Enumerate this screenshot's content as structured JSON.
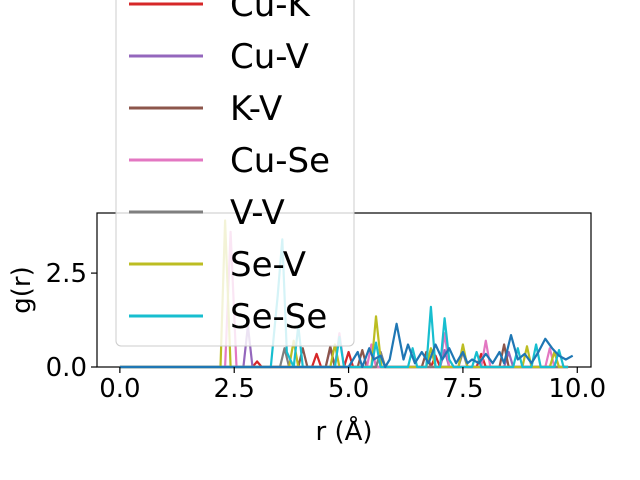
{
  "chart_data": {
    "type": "line",
    "xlabel": "r (Å)",
    "ylabel": "g(r)",
    "xlim": [
      -0.5,
      10.3
    ],
    "ylim": [
      0,
      4.1
    ],
    "x_ticks": [
      0.0,
      2.5,
      5.0,
      7.5,
      10.0
    ],
    "x_tick_labels": [
      "0.0",
      "2.5",
      "5.0",
      "7.5",
      "10.0"
    ],
    "y_ticks": [
      0.0,
      2.5
    ],
    "y_tick_labels": [
      "0.0",
      "2.5"
    ],
    "grid": false,
    "legend_placement": "upper-left, extending above the plot",
    "series": [
      {
        "name": "Cu-K",
        "color": "#d62728",
        "points": [
          [
            0,
            0
          ],
          [
            2.9,
            0
          ],
          [
            3.0,
            0.15
          ],
          [
            3.1,
            0
          ],
          [
            4.2,
            0
          ],
          [
            4.3,
            0.35
          ],
          [
            4.4,
            0
          ],
          [
            4.9,
            0
          ],
          [
            5.0,
            0.4
          ],
          [
            5.1,
            0
          ],
          [
            6.8,
            0
          ],
          [
            6.9,
            0.3
          ],
          [
            7.0,
            0
          ],
          [
            7.8,
            0
          ],
          [
            7.9,
            0.35
          ],
          [
            8.0,
            0
          ],
          [
            9.8,
            0
          ]
        ]
      },
      {
        "name": "Cu-V",
        "color": "#9467bd",
        "points": [
          [
            0,
            0
          ],
          [
            2.7,
            0
          ],
          [
            2.8,
            1.1
          ],
          [
            2.9,
            0
          ],
          [
            4.5,
            0
          ],
          [
            4.6,
            0.5
          ],
          [
            4.7,
            0
          ],
          [
            5.6,
            0
          ],
          [
            5.7,
            0.4
          ],
          [
            5.8,
            0
          ],
          [
            7.0,
            0
          ],
          [
            7.1,
            0.45
          ],
          [
            7.2,
            0
          ],
          [
            8.4,
            0
          ],
          [
            8.5,
            0.4
          ],
          [
            8.6,
            0
          ],
          [
            9.8,
            0
          ]
        ]
      },
      {
        "name": "K-V",
        "color": "#8c564b",
        "points": [
          [
            0,
            0
          ],
          [
            3.9,
            0
          ],
          [
            4.0,
            0.5
          ],
          [
            4.1,
            0
          ],
          [
            4.5,
            0
          ],
          [
            4.6,
            0.55
          ],
          [
            4.7,
            0
          ],
          [
            5.2,
            0
          ],
          [
            5.3,
            0.45
          ],
          [
            5.4,
            0
          ],
          [
            6.6,
            0
          ],
          [
            6.7,
            0.4
          ],
          [
            6.8,
            0
          ],
          [
            8.3,
            0
          ],
          [
            8.4,
            0.6
          ],
          [
            8.5,
            0
          ],
          [
            9.8,
            0
          ]
        ]
      },
      {
        "name": "Cu-Se",
        "color": "#e377c2",
        "points": [
          [
            0,
            0
          ],
          [
            2.3,
            0
          ],
          [
            2.42,
            3.6
          ],
          [
            2.55,
            0
          ],
          [
            4.7,
            0
          ],
          [
            4.8,
            0.9
          ],
          [
            4.9,
            0
          ],
          [
            5.4,
            0
          ],
          [
            5.5,
            0.6
          ],
          [
            5.6,
            0
          ],
          [
            7.0,
            0
          ],
          [
            7.1,
            0.9
          ],
          [
            7.2,
            0
          ],
          [
            7.9,
            0
          ],
          [
            8.0,
            0.7
          ],
          [
            8.1,
            0
          ],
          [
            9.3,
            0
          ],
          [
            9.4,
            0.5
          ],
          [
            9.5,
            0
          ],
          [
            9.8,
            0
          ]
        ]
      },
      {
        "name": "V-V",
        "color": "#7f7f7f",
        "points": [
          [
            0,
            0
          ],
          [
            3.5,
            0
          ],
          [
            3.6,
            0.5
          ],
          [
            3.7,
            0
          ],
          [
            5.6,
            0
          ],
          [
            5.7,
            0.4
          ],
          [
            5.8,
            0
          ],
          [
            7.4,
            0
          ],
          [
            7.5,
            0.4
          ],
          [
            7.6,
            0
          ],
          [
            9.8,
            0
          ]
        ]
      },
      {
        "name": "Se-V",
        "color": "#bcbd22",
        "points": [
          [
            0,
            0
          ],
          [
            2.2,
            0
          ],
          [
            2.3,
            3.9
          ],
          [
            2.42,
            0
          ],
          [
            3.7,
            0
          ],
          [
            3.8,
            0.7
          ],
          [
            3.9,
            0
          ],
          [
            4.6,
            0
          ],
          [
            4.7,
            0.6
          ],
          [
            4.8,
            0
          ],
          [
            5.5,
            0
          ],
          [
            5.6,
            1.35
          ],
          [
            5.72,
            0
          ],
          [
            6.7,
            0
          ],
          [
            6.8,
            0.5
          ],
          [
            6.9,
            0
          ],
          [
            7.4,
            0
          ],
          [
            7.5,
            0.6
          ],
          [
            7.6,
            0
          ],
          [
            8.8,
            0
          ],
          [
            8.9,
            0.55
          ],
          [
            9.0,
            0
          ],
          [
            9.4,
            0
          ],
          [
            9.5,
            0.4
          ],
          [
            9.6,
            0
          ],
          [
            9.8,
            0
          ]
        ]
      },
      {
        "name": "Se-Se",
        "color": "#17becf",
        "points": [
          [
            0,
            0
          ],
          [
            3.3,
            0
          ],
          [
            3.45,
            1.9
          ],
          [
            3.55,
            3.4
          ],
          [
            3.65,
            0.4
          ],
          [
            3.8,
            0
          ],
          [
            3.9,
            1.1
          ],
          [
            4.0,
            0
          ],
          [
            4.7,
            0
          ],
          [
            4.8,
            0.8
          ],
          [
            4.9,
            0
          ],
          [
            5.5,
            0
          ],
          [
            5.6,
            0.65
          ],
          [
            5.7,
            0
          ],
          [
            6.3,
            0
          ],
          [
            6.4,
            0.5
          ],
          [
            6.5,
            0
          ],
          [
            6.7,
            0
          ],
          [
            6.8,
            1.6
          ],
          [
            6.9,
            0
          ],
          [
            7.0,
            0
          ],
          [
            7.1,
            1.3
          ],
          [
            7.2,
            0.2
          ],
          [
            7.3,
            0
          ],
          [
            7.7,
            0
          ],
          [
            7.8,
            0.4
          ],
          [
            7.9,
            0
          ],
          [
            8.6,
            0
          ],
          [
            8.7,
            0.5
          ],
          [
            8.8,
            0
          ],
          [
            9.0,
            0
          ],
          [
            9.1,
            0.6
          ],
          [
            9.2,
            0
          ],
          [
            9.5,
            0
          ],
          [
            9.6,
            0.45
          ],
          [
            9.7,
            0
          ],
          [
            9.8,
            0
          ]
        ]
      },
      {
        "name": "",
        "color": "#1f77b4",
        "points": [
          [
            0,
            0
          ],
          [
            5.0,
            0
          ],
          [
            5.2,
            0.4
          ],
          [
            5.3,
            0
          ],
          [
            5.45,
            0.5
          ],
          [
            5.55,
            0.2
          ],
          [
            5.7,
            0.3
          ],
          [
            5.8,
            0
          ],
          [
            5.9,
            0.2
          ],
          [
            6.05,
            1.15
          ],
          [
            6.2,
            0.2
          ],
          [
            6.3,
            0.6
          ],
          [
            6.45,
            0.1
          ],
          [
            6.6,
            0.4
          ],
          [
            6.75,
            0.1
          ],
          [
            6.9,
            0.6
          ],
          [
            7.05,
            0.2
          ],
          [
            7.2,
            0.5
          ],
          [
            7.35,
            0.1
          ],
          [
            7.5,
            0.4
          ],
          [
            7.6,
            0.1
          ],
          [
            7.7,
            0.2
          ],
          [
            7.85,
            0.1
          ],
          [
            8.0,
            0.35
          ],
          [
            8.15,
            0.1
          ],
          [
            8.3,
            0.4
          ],
          [
            8.4,
            0.1
          ],
          [
            8.55,
            0.85
          ],
          [
            8.7,
            0.2
          ],
          [
            8.85,
            0.35
          ],
          [
            9.0,
            0.1
          ],
          [
            9.15,
            0.4
          ],
          [
            9.3,
            0.75
          ],
          [
            9.45,
            0.5
          ],
          [
            9.6,
            0.3
          ],
          [
            9.75,
            0.2
          ],
          [
            9.9,
            0.3
          ]
        ]
      }
    ]
  }
}
